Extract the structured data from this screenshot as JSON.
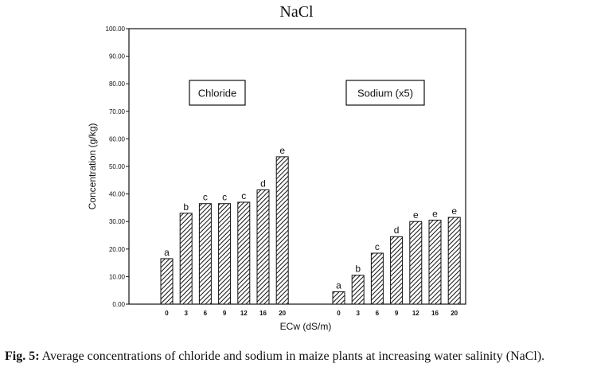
{
  "chart_data": {
    "type": "bar",
    "title": "NaCl",
    "xlabel": "ECw (dS/m)",
    "ylabel": "Concentration (g/kg)",
    "ylim": [
      0,
      100
    ],
    "yticks": [
      "0.00",
      "10.00",
      "20.00",
      "30.00",
      "40.00",
      "50.00",
      "60.00",
      "70.00",
      "80.00",
      "90.00",
      "100.00"
    ],
    "grid": false,
    "bar_pattern": "diagonal-hatch",
    "groups": [
      {
        "name": "Chloride",
        "categories": [
          "0",
          "3",
          "6",
          "9",
          "12",
          "16",
          "20"
        ],
        "values": [
          16.5,
          33.0,
          36.5,
          36.5,
          37.0,
          41.5,
          53.5
        ],
        "letters": [
          "a",
          "b",
          "c",
          "c",
          "c",
          "d",
          "e"
        ]
      },
      {
        "name": "Sodium (x5)",
        "categories": [
          "0",
          "3",
          "6",
          "9",
          "12",
          "16",
          "20"
        ],
        "values": [
          4.5,
          10.5,
          18.5,
          24.5,
          30.0,
          30.5,
          31.5
        ],
        "letters": [
          "a",
          "b",
          "c",
          "d",
          "e",
          "e",
          "e"
        ]
      }
    ]
  },
  "caption": {
    "label": "Fig. 5:",
    "text": "Average concentrations of chloride and sodium in maize plants at increasing water salinity (NaCl)."
  }
}
